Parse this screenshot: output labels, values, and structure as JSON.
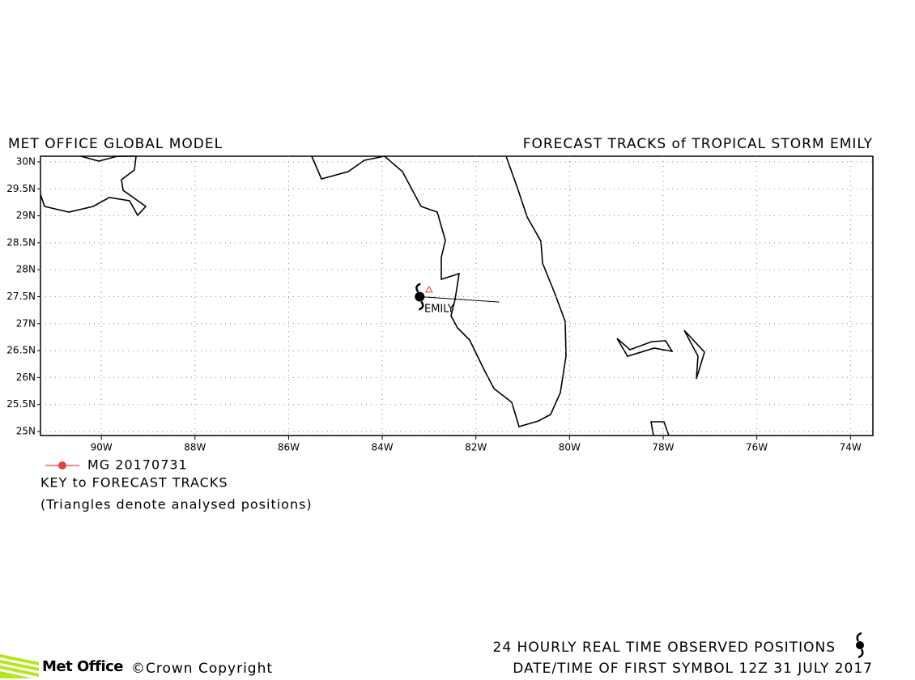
{
  "header": {
    "left_title": "MET OFFICE GLOBAL MODEL",
    "right_title": "FORECAST TRACKS of TROPICAL STORM EMILY"
  },
  "map": {
    "xlim": [
      -91.3,
      -73.52
    ],
    "ylim": [
      24.925,
      30.105
    ],
    "grid": true,
    "xticks": [
      {
        "value": -90,
        "label": "90W"
      },
      {
        "value": -88,
        "label": "88W"
      },
      {
        "value": -86,
        "label": "86W"
      },
      {
        "value": -84,
        "label": "84W"
      },
      {
        "value": -82,
        "label": "82W"
      },
      {
        "value": -80,
        "label": "80W"
      },
      {
        "value": -78,
        "label": "78W"
      },
      {
        "value": -76,
        "label": "76W"
      },
      {
        "value": -74,
        "label": "74W"
      }
    ],
    "yticks": [
      {
        "value": 30,
        "label": "30N"
      },
      {
        "value": 29.5,
        "label": "29.5N"
      },
      {
        "value": 29,
        "label": "29N"
      },
      {
        "value": 28.5,
        "label": "28.5N"
      },
      {
        "value": 28,
        "label": "28N"
      },
      {
        "value": 27.5,
        "label": "27.5N"
      },
      {
        "value": 27,
        "label": "27N"
      },
      {
        "value": 26.5,
        "label": "26.5N"
      },
      {
        "value": 26,
        "label": "26N"
      },
      {
        "value": 25.5,
        "label": "25.5N"
      },
      {
        "value": 25,
        "label": "25N"
      }
    ],
    "tracks": [
      {
        "name": "MG 20170731",
        "color": "#e8413c",
        "lon": [
          -83.2,
          -81.5
        ],
        "lat": [
          27.5,
          27.4
        ]
      }
    ],
    "analysed": {
      "color": "#e8413c",
      "lon": [
        -83.0
      ],
      "lat": [
        27.63
      ]
    },
    "storm_label": "EMILY"
  },
  "legend": {
    "key_title": "KEY to FORECAST TRACKS",
    "note": "(Triangles denote analysed positions)"
  },
  "footer": {
    "logo": "Met Office",
    "copyright": "©Crown Copyright",
    "observed": "24 HOURLY REAL TIME OBSERVED POSITIONS",
    "first_symbol": "DATE/TIME OF FIRST SYMBOL 12Z 31 JULY 2017"
  }
}
